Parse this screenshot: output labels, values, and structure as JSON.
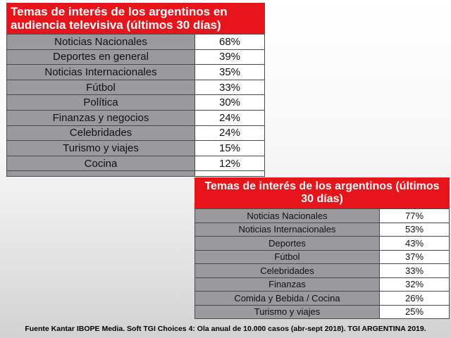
{
  "chart_data": [
    {
      "type": "table",
      "title": "Temas de interés de los argentinos en audiencia televisiva (últimos 30 días)",
      "categories": [
        "Noticias Nacionales",
        "Deportes en general",
        "Noticias Internacionales",
        "Fútbol",
        "Política",
        "Finanzas y negocios",
        "Celebridades",
        "Turismo y viajes",
        "Cocina"
      ],
      "values": [
        "68%",
        "39%",
        "35%",
        "33%",
        "30%",
        "24%",
        "24%",
        "15%",
        "12%"
      ]
    },
    {
      "type": "table",
      "title": "Temas de interés de los argentinos (últimos 30 días)",
      "categories": [
        "Noticias Nacionales",
        "Noticias Internacionales",
        "Deportes",
        "Fútbol",
        "Celebridades",
        "Finanzas",
        "Comida y Bebida / Cocina",
        "Turismo y viajes"
      ],
      "values": [
        "77%",
        "53%",
        "43%",
        "37%",
        "33%",
        "32%",
        "26%",
        "25%"
      ]
    }
  ],
  "footer": {
    "source": "Fuente Kantar IBOPE Media. Soft TGI Choices 4: Ola anual de 10.000 casos (abr-sept 2018). TGI ARGENTINA 2019."
  },
  "colors": {
    "title_background": "#e8141b",
    "label_background": "#9a9a9e",
    "value_background": "#ffffff"
  }
}
